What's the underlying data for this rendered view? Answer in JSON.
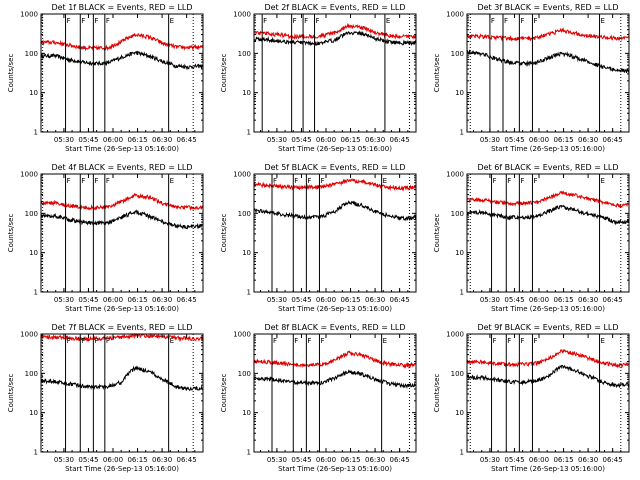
{
  "chart_data": [
    {
      "type": "line",
      "title": "Det 1f BLACK = Events, RED = LLD",
      "xlabel": "Start Time (26-Sep-13 05:16:00)",
      "ylabel": "Counts/sec",
      "xlim": [
        "05:16",
        "06:55"
      ],
      "ylim": [
        1,
        1000
      ],
      "ylog": true,
      "xticks": [
        "05:30",
        "05:45",
        "06:00",
        "06:15",
        "06:30",
        "06:45"
      ],
      "yticks": [
        "1",
        "10",
        "100",
        "1000"
      ],
      "markers": [
        "F",
        "F",
        "F",
        "F",
        "E"
      ],
      "marker_times": [
        "05:31",
        "05:40",
        "05:48",
        "05:55",
        "06:34"
      ],
      "dotted_times": [
        "05:17",
        "06:49"
      ],
      "series": [
        {
          "color": "#000000",
          "profile": [
            85,
            88,
            70,
            60,
            55,
            57,
            80,
            105,
            85,
            62,
            48,
            45,
            48
          ]
        },
        {
          "color": "#e00000",
          "profile": [
            190,
            190,
            165,
            140,
            135,
            140,
            200,
            300,
            260,
            180,
            145,
            140,
            145
          ]
        }
      ]
    },
    {
      "type": "line",
      "title": "Det 2f BLACK = Events, RED = LLD",
      "xlabel": "Start Time (26-Sep-13 05:16:00)",
      "ylabel": "Counts/sec",
      "xlim": [
        "05:16",
        "06:55"
      ],
      "ylim": [
        1,
        1000
      ],
      "ylog": true,
      "xticks": [
        "05:30",
        "05:45",
        "06:00",
        "06:15",
        "06:30",
        "06:45"
      ],
      "yticks": [
        "1",
        "10",
        "100",
        "1000"
      ],
      "markers": [
        "F",
        "F",
        "F",
        "F",
        "E"
      ],
      "marker_times": [
        "05:21",
        "05:39",
        "05:46",
        "05:53",
        "06:36"
      ],
      "dotted_times": [
        "06:51"
      ],
      "series": [
        {
          "color": "#000000",
          "profile": [
            230,
            225,
            205,
            190,
            180,
            180,
            220,
            340,
            320,
            240,
            195,
            185,
            190
          ]
        },
        {
          "color": "#e00000",
          "profile": [
            330,
            320,
            290,
            270,
            270,
            275,
            330,
            500,
            450,
            340,
            280,
            265,
            270
          ]
        }
      ]
    },
    {
      "type": "line",
      "title": "Det 3f BLACK = Events, RED = LLD",
      "xlabel": "Start Time (26-Sep-13 05:16:00)",
      "ylabel": "Counts/sec",
      "xlim": [
        "05:16",
        "06:55"
      ],
      "ylim": [
        1,
        1000
      ],
      "ylog": true,
      "xticks": [
        "05:30",
        "05:45",
        "06:00",
        "06:15",
        "06:30",
        "06:45"
      ],
      "yticks": [
        "1",
        "10",
        "100",
        "1000"
      ],
      "markers": [
        "F",
        "F",
        "F",
        "F",
        "E"
      ],
      "marker_times": [
        "05:30",
        "05:38",
        "05:48",
        "05:56",
        "06:37"
      ],
      "dotted_times": [
        "05:18",
        "06:50"
      ],
      "series": [
        {
          "color": "#000000",
          "profile": [
            110,
            100,
            75,
            60,
            55,
            55,
            75,
            100,
            80,
            60,
            45,
            38,
            35
          ]
        },
        {
          "color": "#e00000",
          "profile": [
            270,
            270,
            255,
            240,
            235,
            245,
            300,
            380,
            330,
            285,
            255,
            245,
            245
          ]
        }
      ]
    },
    {
      "type": "line",
      "title": "Det 4f BLACK = Events, RED = LLD",
      "xlabel": "Start Time (26-Sep-13 05:16:00)",
      "ylabel": "Counts/sec",
      "xlim": [
        "05:16",
        "06:55"
      ],
      "ylim": [
        1,
        1000
      ],
      "ylog": true,
      "xticks": [
        "05:30",
        "05:45",
        "06:00",
        "06:15",
        "06:30",
        "06:45"
      ],
      "yticks": [
        "1",
        "10",
        "100",
        "1000"
      ],
      "markers": [
        "F",
        "F",
        "F",
        "F",
        "E"
      ],
      "marker_times": [
        "05:31",
        "05:40",
        "05:48",
        "05:55",
        "06:34"
      ],
      "dotted_times": [
        "05:17",
        "06:49"
      ],
      "series": [
        {
          "color": "#000000",
          "profile": [
            85,
            88,
            70,
            60,
            55,
            57,
            80,
            110,
            85,
            62,
            48,
            45,
            48
          ]
        },
        {
          "color": "#e00000",
          "profile": [
            185,
            185,
            160,
            140,
            140,
            145,
            200,
            290,
            255,
            180,
            145,
            140,
            145
          ]
        }
      ]
    },
    {
      "type": "line",
      "title": "Det 5f BLACK = Events, RED = LLD",
      "xlabel": "Start Time (26-Sep-13 05:16:00)",
      "ylabel": "Counts/sec",
      "xlim": [
        "05:16",
        "06:55"
      ],
      "ylim": [
        1,
        1000
      ],
      "ylog": true,
      "xticks": [
        "05:30",
        "05:45",
        "06:00",
        "06:15",
        "06:30",
        "06:45"
      ],
      "yticks": [
        "1",
        "10",
        "100",
        "1000"
      ],
      "markers": [
        "F",
        "F",
        "F",
        "F",
        "E"
      ],
      "marker_times": [
        "05:27",
        "05:40",
        "05:48",
        "05:56",
        "06:34"
      ],
      "dotted_times": [
        "06:51"
      ],
      "series": [
        {
          "color": "#000000",
          "profile": [
            120,
            110,
            95,
            85,
            80,
            82,
            110,
            190,
            160,
            110,
            85,
            75,
            78
          ]
        },
        {
          "color": "#e00000",
          "profile": [
            540,
            520,
            480,
            460,
            460,
            470,
            540,
            680,
            640,
            520,
            460,
            440,
            450
          ]
        }
      ]
    },
    {
      "type": "line",
      "title": "Det 6f BLACK = Events, RED = LLD",
      "xlabel": "Start Time (26-Sep-13 05:16:00)",
      "ylabel": "Counts/sec",
      "xlim": [
        "05:16",
        "06:55"
      ],
      "ylim": [
        1,
        1000
      ],
      "ylog": true,
      "xticks": [
        "05:30",
        "05:45",
        "06:00",
        "06:15",
        "06:30",
        "06:45"
      ],
      "yticks": [
        "1",
        "10",
        "100",
        "1000"
      ],
      "markers": [
        "F",
        "F",
        "F",
        "F",
        "E"
      ],
      "marker_times": [
        "05:31",
        "05:40",
        "05:48",
        "05:56",
        "06:37"
      ],
      "dotted_times": [
        "05:18",
        "06:50"
      ],
      "series": [
        {
          "color": "#000000",
          "profile": [
            105,
            105,
            90,
            80,
            78,
            80,
            110,
            150,
            120,
            95,
            80,
            60,
            62
          ]
        },
        {
          "color": "#e00000",
          "profile": [
            220,
            220,
            195,
            180,
            180,
            185,
            240,
            330,
            290,
            230,
            200,
            160,
            165
          ]
        }
      ]
    },
    {
      "type": "line",
      "title": "Det 7f BLACK = Events, RED = LLD",
      "xlabel": "Start Time (26-Sep-13 05:16:00)",
      "ylabel": "Counts/sec",
      "xlim": [
        "05:16",
        "06:55"
      ],
      "ylim": [
        1,
        1000
      ],
      "ylog": true,
      "xticks": [
        "05:30",
        "05:45",
        "06:00",
        "06:15",
        "06:30",
        "06:45"
      ],
      "yticks": [
        "1",
        "10",
        "100",
        "1000"
      ],
      "markers": [
        "F",
        "F",
        "F",
        "F",
        "E"
      ],
      "marker_times": [
        "05:31",
        "05:40",
        "05:48",
        "05:55",
        "06:34"
      ],
      "dotted_times": [
        "05:17",
        "06:49"
      ],
      "series": [
        {
          "color": "#000000",
          "profile": [
            65,
            62,
            55,
            48,
            45,
            47,
            60,
            140,
            110,
            70,
            45,
            40,
            42
          ]
        },
        {
          "color": "#e00000",
          "profile": [
            850,
            830,
            790,
            760,
            760,
            770,
            830,
            920,
            900,
            850,
            800,
            770,
            780
          ]
        }
      ]
    },
    {
      "type": "line",
      "title": "Det 8f BLACK = Events, RED = LLD",
      "xlabel": "Start Time (26-Sep-13 05:16:00)",
      "ylabel": "Counts/sec",
      "xlim": [
        "05:16",
        "06:55"
      ],
      "ylim": [
        1,
        1000
      ],
      "ylog": true,
      "xticks": [
        "05:30",
        "05:45",
        "06:00",
        "06:15",
        "06:30",
        "06:45"
      ],
      "yticks": [
        "1",
        "10",
        "100",
        "1000"
      ],
      "markers": [
        "F",
        "F",
        "F",
        "F",
        "E"
      ],
      "marker_times": [
        "05:27",
        "05:40",
        "05:48",
        "05:56",
        "06:34"
      ],
      "dotted_times": [
        "06:51"
      ],
      "series": [
        {
          "color": "#000000",
          "profile": [
            75,
            72,
            65,
            58,
            56,
            58,
            75,
            110,
            95,
            70,
            55,
            48,
            50
          ]
        },
        {
          "color": "#e00000",
          "profile": [
            200,
            195,
            180,
            165,
            165,
            170,
            210,
            330,
            290,
            210,
            175,
            160,
            165
          ]
        }
      ]
    },
    {
      "type": "line",
      "title": "Det 9f BLACK = Events, RED = LLD",
      "xlabel": "Start Time (26-Sep-13 05:16:00)",
      "ylabel": "Counts/sec",
      "xlim": [
        "05:16",
        "06:55"
      ],
      "ylim": [
        1,
        1000
      ],
      "ylog": true,
      "xticks": [
        "05:30",
        "05:45",
        "06:00",
        "06:15",
        "06:30",
        "06:45"
      ],
      "yticks": [
        "1",
        "10",
        "100",
        "1000"
      ],
      "markers": [
        "F",
        "F",
        "F",
        "F",
        "E"
      ],
      "marker_times": [
        "05:31",
        "05:40",
        "05:48",
        "05:56",
        "06:37"
      ],
      "dotted_times": [
        "05:18",
        "06:50"
      ],
      "series": [
        {
          "color": "#000000",
          "profile": [
            80,
            78,
            70,
            62,
            60,
            62,
            80,
            150,
            120,
            85,
            60,
            50,
            52
          ]
        },
        {
          "color": "#e00000",
          "profile": [
            200,
            195,
            180,
            170,
            170,
            175,
            220,
            370,
            320,
            240,
            185,
            160,
            165
          ]
        }
      ]
    }
  ]
}
